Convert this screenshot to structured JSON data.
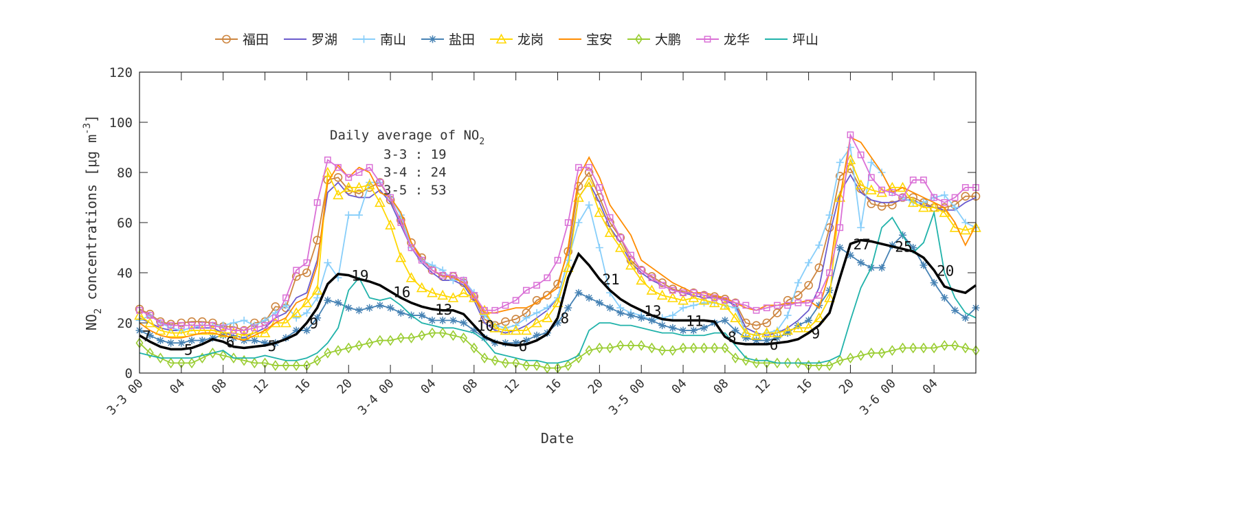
{
  "chart_data": {
    "type": "line",
    "xlabel": "Date",
    "ylabel": "NO2 concentrations [μg m-3]",
    "ylim": [
      0,
      120
    ],
    "yticks": [
      0,
      20,
      40,
      60,
      80,
      100,
      120
    ],
    "x_unit": "hour from 3-3 00",
    "xlim": [
      0,
      80
    ],
    "xtick_labels": [
      "3-3 00",
      "04",
      "08",
      "12",
      "16",
      "20",
      "3-4 00",
      "04",
      "08",
      "12",
      "16",
      "20",
      "3-5 00",
      "04",
      "08",
      "12",
      "16",
      "20",
      "3-6 00",
      "04"
    ],
    "grid": false,
    "legend_placement": "top, outside, horizontal",
    "series": [
      {
        "name": "福田",
        "color": "#cd853f",
        "marker": "circle",
        "values": [
          25.5,
          23.5,
          20.5,
          19.5,
          20,
          20.5,
          20.5,
          20,
          18.5,
          18.5,
          17,
          20,
          20.5,
          26.5,
          26,
          38.5,
          40,
          53,
          77,
          78,
          73,
          71.5,
          74,
          76,
          69,
          61,
          52,
          46,
          41,
          38.5,
          38.5,
          36,
          30.5,
          21.5,
          19,
          20.5,
          21.5,
          24,
          29,
          31,
          35.5,
          48.5,
          74.5,
          80,
          70,
          60,
          54,
          45,
          41,
          38.5,
          36,
          33.5,
          32.5,
          32,
          31,
          30.5,
          29.5,
          28,
          20,
          19,
          20,
          24,
          29,
          31,
          35,
          42,
          58,
          78.5,
          81.5,
          73.5,
          67.5,
          66.5,
          67,
          70,
          70,
          68,
          66,
          66,
          67,
          70.5,
          70.5
        ]
      },
      {
        "name": "罗湖",
        "color": "#6a5acd",
        "marker": "none",
        "values": [
          22,
          20,
          18,
          17,
          17,
          18,
          18,
          18,
          16,
          15,
          14,
          16,
          18,
          22,
          24,
          30,
          32,
          45,
          72,
          76,
          71,
          70,
          70,
          73,
          68,
          59,
          50,
          44,
          40,
          37,
          37,
          35,
          29,
          20,
          17,
          16,
          17,
          19,
          22,
          25,
          30,
          45,
          70,
          76,
          68,
          58,
          52,
          44,
          40,
          37,
          35,
          33,
          32,
          31,
          30,
          30,
          29,
          27,
          18,
          16,
          15,
          16,
          18,
          21,
          25,
          34,
          55,
          72,
          79,
          72,
          69,
          68,
          68,
          69,
          69,
          67,
          66,
          65,
          65,
          68,
          70
        ]
      },
      {
        "name": "南山",
        "color": "#87cefa",
        "marker": "plus",
        "values": [
          21,
          23,
          20,
          18,
          17,
          18,
          19,
          19,
          19,
          20,
          21,
          19,
          21,
          24,
          27,
          22,
          24,
          30,
          44,
          38,
          63,
          63,
          76,
          76,
          70,
          63,
          50,
          45,
          43,
          41,
          37,
          37,
          32,
          23,
          19,
          18,
          19,
          22,
          24,
          26,
          30,
          45,
          60,
          67,
          50,
          32,
          26,
          24,
          23,
          21,
          22,
          23,
          26,
          27,
          28,
          28,
          27,
          26,
          16,
          15,
          16,
          17,
          23,
          36,
          44,
          51,
          63,
          84,
          90,
          58,
          84,
          80,
          72,
          70,
          68,
          68,
          70,
          71,
          66,
          60,
          58
        ]
      },
      {
        "name": "盐田",
        "color": "#4682b4",
        "marker": "asterisk",
        "values": [
          17,
          15,
          13,
          12,
          12,
          13,
          13,
          14,
          15,
          14,
          13,
          13,
          12,
          12,
          14,
          17,
          17,
          22,
          29,
          28,
          26,
          25,
          26,
          27,
          26,
          24,
          23,
          23,
          21,
          21,
          21,
          20,
          17,
          14,
          12,
          12,
          12,
          13,
          15,
          16,
          20,
          26,
          32,
          30,
          28,
          26,
          24,
          23,
          22,
          21,
          19,
          18,
          17,
          17,
          18,
          20,
          21,
          17,
          14,
          13,
          13,
          14,
          16,
          19,
          21,
          27,
          33,
          50,
          47,
          44,
          42,
          42,
          51,
          55,
          50,
          43,
          36,
          30,
          25,
          22,
          26
        ]
      },
      {
        "name": "龙岗",
        "color": "#ffd700",
        "marker": "triangle",
        "values": [
          23,
          20,
          17,
          16,
          16,
          17,
          17,
          17,
          16,
          16,
          15,
          16,
          16,
          20,
          20,
          24,
          28,
          33,
          80,
          71,
          74,
          74,
          75,
          68,
          59,
          46,
          38,
          34,
          32,
          31,
          30,
          32,
          30,
          25,
          18,
          17,
          17,
          17,
          20,
          22,
          28,
          42,
          70,
          76,
          64,
          56,
          50,
          43,
          37,
          33,
          31,
          30,
          29,
          30,
          29,
          28,
          27,
          22,
          16,
          15,
          16,
          16,
          17,
          18,
          18,
          22,
          30,
          70,
          85,
          75,
          73,
          72,
          74,
          74,
          68,
          66,
          66,
          64,
          58,
          57,
          58
        ]
      },
      {
        "name": "宝安",
        "color": "#ff8c00",
        "marker": "none",
        "values": [
          20,
          17,
          15,
          14,
          14,
          15,
          16,
          16,
          15,
          14,
          13,
          15,
          17,
          20,
          22,
          28,
          30,
          43,
          76,
          83,
          78,
          82,
          80,
          72,
          70,
          64,
          52,
          45,
          41,
          39,
          38,
          36,
          30,
          24,
          24,
          25,
          26,
          26,
          28,
          31,
          34,
          50,
          78,
          86,
          78,
          67,
          61,
          55,
          45,
          42,
          39,
          36,
          34,
          32,
          32,
          31,
          30,
          28,
          26,
          25,
          27,
          27,
          28,
          28,
          29,
          26,
          40,
          70,
          94,
          92,
          86,
          80,
          72,
          74,
          72,
          70,
          68,
          66,
          60,
          51,
          59
        ]
      },
      {
        "name": "大鹏",
        "color": "#9acd32",
        "marker": "diamond",
        "values": [
          12,
          8,
          6,
          4,
          4,
          4,
          6,
          8,
          7,
          6,
          5,
          4,
          4,
          3,
          3,
          3,
          3,
          5,
          8,
          9,
          10,
          11,
          12,
          13,
          13,
          14,
          14,
          15,
          16,
          16,
          15,
          14,
          10,
          6,
          5,
          4,
          4,
          3,
          3,
          2,
          2,
          3,
          6,
          9,
          10,
          10,
          11,
          11,
          11,
          10,
          9,
          9,
          10,
          10,
          10,
          10,
          10,
          6,
          5,
          4,
          4,
          4,
          4,
          4,
          3,
          3,
          3,
          5,
          6,
          7,
          8,
          8,
          9,
          10,
          10,
          10,
          10,
          11,
          11,
          10,
          9
        ]
      },
      {
        "name": "龙华",
        "color": "#da70d6",
        "marker": "square",
        "values": [
          25,
          23,
          20,
          19,
          19,
          19,
          19,
          19,
          18,
          17,
          17,
          18,
          19,
          22,
          30,
          41,
          44,
          68,
          85,
          82,
          78,
          80,
          82,
          76,
          70,
          60,
          50,
          45,
          41,
          39,
          39,
          37,
          31,
          25,
          25,
          27,
          29,
          33,
          35,
          38,
          45,
          60,
          82,
          82,
          74,
          62,
          54,
          47,
          41,
          38,
          35,
          33,
          32,
          32,
          31,
          30,
          29,
          28,
          27,
          25,
          26,
          27,
          27,
          28,
          28,
          31,
          40,
          58,
          95,
          87,
          78,
          73,
          72,
          70,
          77,
          77,
          70,
          68,
          70,
          74,
          74
        ]
      },
      {
        "name": "坪山",
        "color": "#20b2aa",
        "marker": "none",
        "values": [
          8,
          7,
          6,
          6,
          6,
          6,
          7,
          8,
          9,
          6,
          6,
          6,
          7,
          6,
          5,
          5,
          6,
          8,
          12,
          18,
          33,
          38,
          30,
          29,
          30,
          27,
          23,
          20,
          19,
          18,
          18,
          17,
          16,
          13,
          8,
          7,
          6,
          5,
          5,
          4,
          4,
          5,
          7,
          17,
          20,
          20,
          19,
          19,
          18,
          17,
          16,
          16,
          15,
          15,
          15,
          16,
          16,
          11,
          6,
          5,
          5,
          4,
          4,
          4,
          4,
          4,
          5,
          7,
          21,
          34,
          42,
          58,
          62,
          55,
          48,
          52,
          64,
          40,
          30,
          24,
          22
        ]
      }
    ],
    "mean_line": {
      "color": "#000000",
      "values": [
        15,
        12.5,
        10.5,
        9.5,
        9.5,
        10,
        11.5,
        13.5,
        12.5,
        10.5,
        10,
        10.5,
        11,
        12,
        13.5,
        15.5,
        20,
        26,
        35.5,
        39.5,
        39,
        37.5,
        36.5,
        35,
        32.5,
        30,
        28,
        26.5,
        25.5,
        25,
        25,
        23.5,
        19,
        14.5,
        12.5,
        11.5,
        11,
        11.5,
        13,
        15.5,
        22,
        38,
        47.5,
        43,
        37.5,
        33,
        29.5,
        27,
        25,
        23,
        21.5,
        21,
        21,
        21,
        21,
        20.5,
        14.5,
        12,
        11.5,
        11.5,
        11.5,
        12,
        12.5,
        13.5,
        16,
        19,
        24,
        38,
        51.5,
        53,
        52.5,
        51.5,
        50.5,
        49.5,
        48.5,
        46,
        41,
        34.5,
        33,
        32,
        35
      ],
      "labels": [
        {
          "hour": 0,
          "text": "7"
        },
        {
          "hour": 4,
          "text": "5"
        },
        {
          "hour": 8,
          "text": "6"
        },
        {
          "hour": 12,
          "text": "5"
        },
        {
          "hour": 16,
          "text": "9"
        },
        {
          "hour": 20,
          "text": "19"
        },
        {
          "hour": 24,
          "text": "16"
        },
        {
          "hour": 28,
          "text": "13"
        },
        {
          "hour": 32,
          "text": "10"
        },
        {
          "hour": 36,
          "text": "6"
        },
        {
          "hour": 40,
          "text": "8"
        },
        {
          "hour": 44,
          "text": "21"
        },
        {
          "hour": 48,
          "text": "13"
        },
        {
          "hour": 52,
          "text": "11"
        },
        {
          "hour": 56,
          "text": "8"
        },
        {
          "hour": 60,
          "text": "6"
        },
        {
          "hour": 64,
          "text": "9"
        },
        {
          "hour": 68,
          "text": "27"
        },
        {
          "hour": 72,
          "text": "25"
        },
        {
          "hour": 76,
          "text": "20"
        }
      ]
    },
    "annotation": {
      "title": "Daily average of NO",
      "title_sub": "2",
      "lines": [
        "3-3 : 19",
        "3-4 : 24",
        "3-5 : 53"
      ]
    }
  }
}
